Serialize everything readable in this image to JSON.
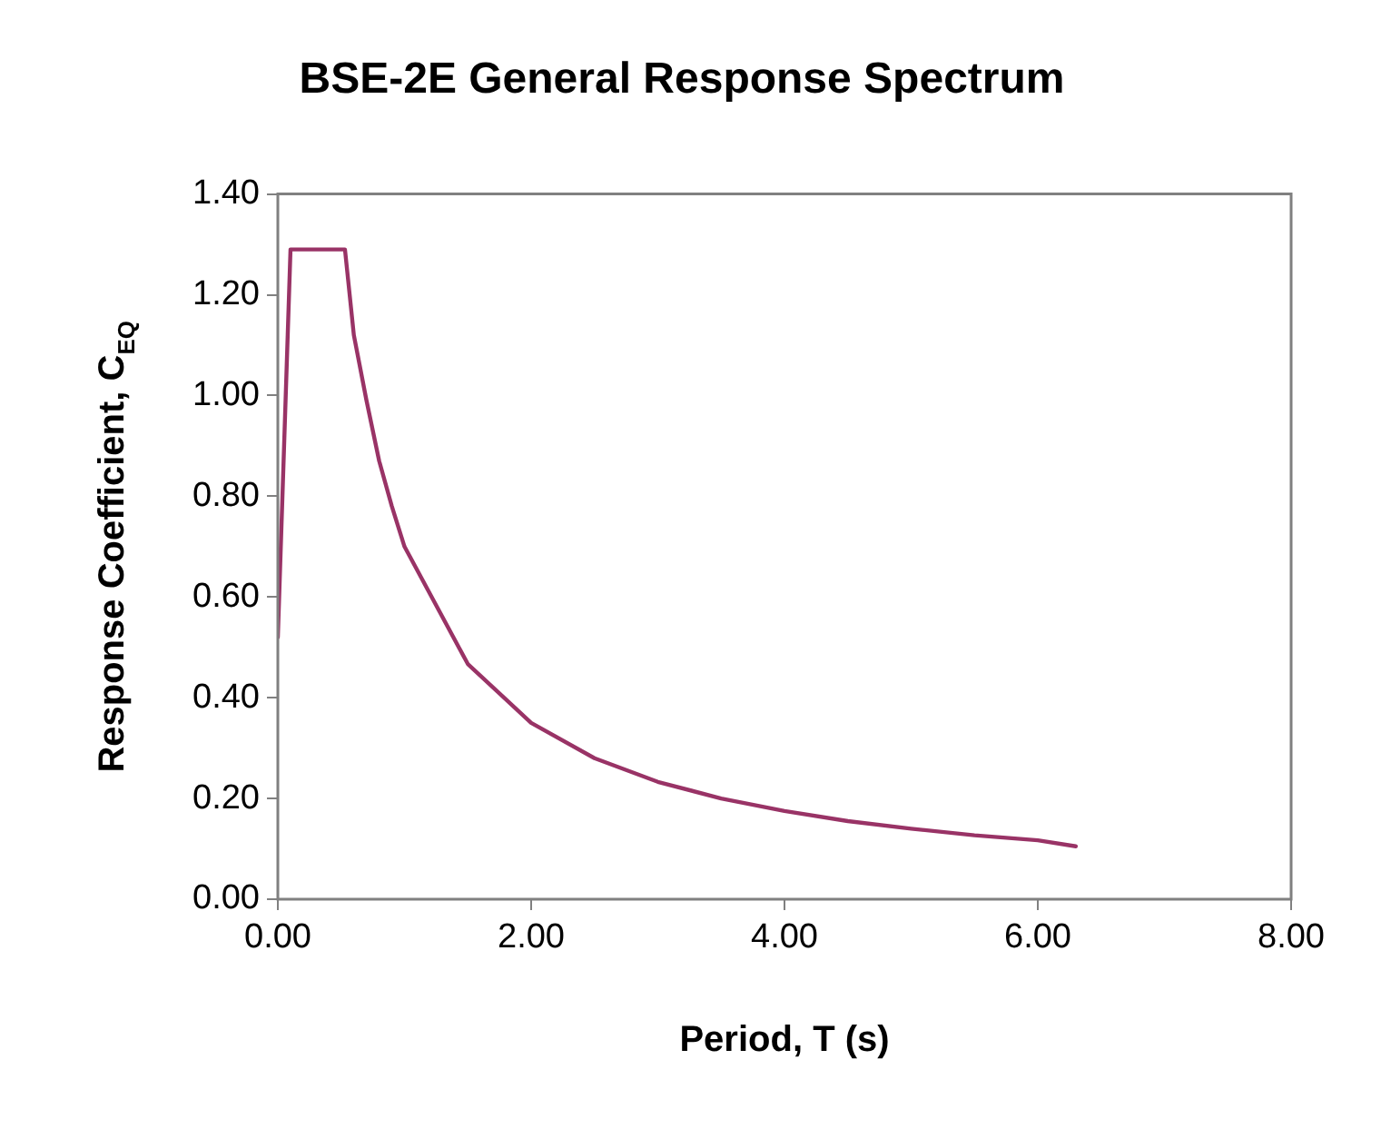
{
  "chart_data": {
    "type": "line",
    "title": "BSE-2E General Response Spectrum",
    "xlabel": "Period, T (s)",
    "ylabel": "Response Coefficient, C$_{EQ}$",
    "xlim": [
      0,
      8
    ],
    "xticks": [
      {
        "value": 0,
        "label": "0.00"
      },
      {
        "value": 2,
        "label": "2.00"
      },
      {
        "value": 4,
        "label": "4.00"
      },
      {
        "value": 6,
        "label": "6.00"
      },
      {
        "value": 8,
        "label": "8.00"
      }
    ],
    "ylim": [
      0,
      1.4
    ],
    "yticks": [
      {
        "value": 0,
        "label": "0.00"
      },
      {
        "value": 0.2,
        "label": "0.20"
      },
      {
        "value": 0.4,
        "label": "0.40"
      },
      {
        "value": 0.6,
        "label": "0.60"
      },
      {
        "value": 0.8,
        "label": "0.80"
      },
      {
        "value": 1.0,
        "label": "1.00"
      },
      {
        "value": 1.2,
        "label": "1.20"
      },
      {
        "value": 1.4,
        "label": "1.40"
      }
    ],
    "grid": false,
    "legend": false,
    "marker": "none",
    "line_style": "solid",
    "series": [
      {
        "color": "#993366",
        "x": [
          0,
          0.1,
          0.53,
          0.6,
          0.7,
          0.8,
          0.9,
          1.0,
          1.5,
          2.0,
          2.5,
          3.0,
          3.5,
          4.0,
          4.5,
          5.0,
          5.5,
          6.0,
          6.3
        ],
        "values": [
          0.52,
          1.29,
          1.29,
          1.12,
          0.99,
          0.87,
          0.78,
          0.7,
          0.467,
          0.35,
          0.28,
          0.233,
          0.2,
          0.175,
          0.155,
          0.14,
          0.127,
          0.117,
          0.105
        ]
      }
    ]
  }
}
